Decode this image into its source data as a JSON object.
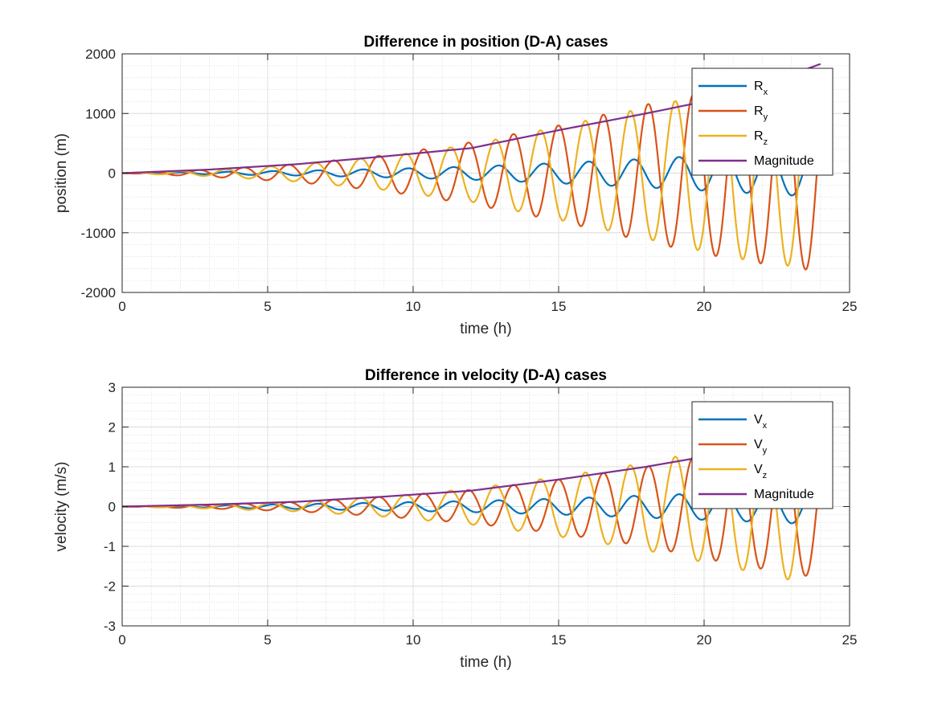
{
  "chart_data": [
    {
      "type": "line",
      "title": "Difference in position (D-A) cases",
      "xlabel": "time (h)",
      "ylabel": "position (m)",
      "xlim": [
        0,
        25
      ],
      "ylim": [
        -2000,
        2000
      ],
      "xticks": [
        "0",
        "5",
        "10",
        "15",
        "20",
        "25"
      ],
      "yticks": [
        "-2000",
        "-1000",
        "0",
        "1000",
        "2000"
      ],
      "grid": "major and minor (dotted)",
      "legend_location": "top-right",
      "series": [
        {
          "name": "Rx",
          "base": "R",
          "sub": "x",
          "color": "#0072BD",
          "x": [
            0,
            3,
            6,
            9,
            12,
            15,
            18,
            21,
            24
          ],
          "envelope": [
            0,
            20,
            40,
            70,
            110,
            170,
            240,
            320,
            400
          ]
        },
        {
          "name": "Ry",
          "base": "R",
          "sub": "y",
          "color": "#D95319",
          "x": [
            0,
            3,
            6,
            9,
            12,
            15,
            18,
            21,
            24
          ],
          "envelope": [
            0,
            60,
            150,
            300,
            520,
            800,
            1150,
            1450,
            1650
          ]
        },
        {
          "name": "Rz",
          "base": "R",
          "sub": "z",
          "color": "#EDB120",
          "x": [
            0,
            3,
            6,
            9,
            12,
            15,
            18,
            21,
            24
          ],
          "envelope": [
            0,
            50,
            140,
            280,
            480,
            780,
            1100,
            1420,
            1630
          ]
        },
        {
          "name": "Magnitude",
          "base": "Magnitude",
          "sub": "",
          "color": "#7E2F8E",
          "x": [
            0,
            3,
            6,
            9,
            12,
            15,
            18,
            21,
            24
          ],
          "values": [
            0,
            60,
            150,
            280,
            420,
            720,
            1000,
            1300,
            1830
          ]
        }
      ]
    },
    {
      "type": "line",
      "title": "Difference in velocity (D-A) cases",
      "xlabel": "time (h)",
      "ylabel": "velocity (m/s)",
      "xlim": [
        0,
        25
      ],
      "ylim": [
        -3,
        3
      ],
      "xticks": [
        "0",
        "5",
        "10",
        "15",
        "20",
        "25"
      ],
      "yticks": [
        "-3",
        "-2",
        "-1",
        "0",
        "1",
        "2",
        "3"
      ],
      "grid": "major and minor (dotted)",
      "legend_location": "top-right",
      "series": [
        {
          "name": "Vx",
          "base": "V",
          "sub": "x",
          "color": "#0072BD",
          "x": [
            0,
            3,
            6,
            9,
            12,
            15,
            18,
            21,
            24
          ],
          "envelope": [
            0,
            0.03,
            0.06,
            0.1,
            0.14,
            0.2,
            0.28,
            0.36,
            0.45
          ]
        },
        {
          "name": "Vy",
          "base": "V",
          "sub": "y",
          "color": "#D95319",
          "x": [
            0,
            3,
            6,
            9,
            12,
            15,
            18,
            21,
            24
          ],
          "envelope": [
            0,
            0.05,
            0.12,
            0.25,
            0.42,
            0.68,
            1.0,
            1.45,
            1.8
          ]
        },
        {
          "name": "Vz",
          "base": "V",
          "sub": "z",
          "color": "#EDB120",
          "x": [
            0,
            3,
            6,
            9,
            12,
            15,
            18,
            21,
            24
          ],
          "envelope": [
            0,
            0.05,
            0.12,
            0.25,
            0.45,
            0.75,
            1.1,
            1.55,
            2.0
          ]
        },
        {
          "name": "Magnitude",
          "base": "Magnitude",
          "sub": "",
          "color": "#7E2F8E",
          "x": [
            0,
            3,
            6,
            9,
            12,
            15,
            18,
            21,
            24
          ],
          "values": [
            0,
            0.05,
            0.12,
            0.25,
            0.4,
            0.68,
            1.0,
            1.38,
            1.75
          ]
        }
      ]
    }
  ]
}
